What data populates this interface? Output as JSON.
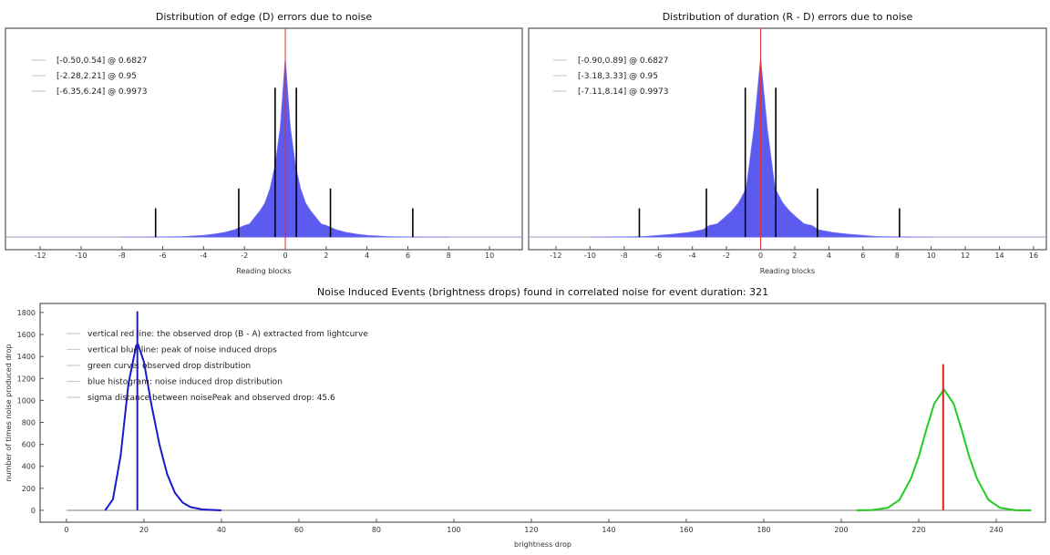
{
  "chart_data": [
    {
      "type": "area",
      "title": "Distribution of edge (D) errors due to noise",
      "xlabel": "Reading blocks",
      "ylabel": "",
      "xlim": [
        -13.7,
        11.6
      ],
      "ylim": [
        -0.07,
        1.16
      ],
      "xticks": [
        -12,
        -10,
        -8,
        -6,
        -4,
        -2,
        0,
        2,
        4,
        6,
        8,
        10
      ],
      "grid": false,
      "legend_position": "top-left",
      "legend": [
        "[-0.50,0.54] @ 0.6827",
        "[-2.28,2.21] @ 0.95",
        "[-6.35,6.24] @ 0.9973"
      ],
      "histogram": {
        "x": [
          -8,
          -6,
          -5,
          -4,
          -3.5,
          -3,
          -2.5,
          -2,
          -1.75,
          -1.5,
          -1.25,
          -1,
          -0.75,
          -0.5,
          -0.25,
          0,
          0.25,
          0.5,
          0.75,
          1,
          1.25,
          1.5,
          1.75,
          2,
          2.5,
          3,
          3.5,
          4,
          5,
          6,
          8
        ],
        "y": [
          0,
          0.002,
          0.004,
          0.01,
          0.017,
          0.026,
          0.041,
          0.065,
          0.074,
          0.11,
          0.145,
          0.19,
          0.27,
          0.4,
          0.61,
          1.0,
          0.61,
          0.4,
          0.27,
          0.19,
          0.145,
          0.11,
          0.074,
          0.065,
          0.041,
          0.026,
          0.017,
          0.01,
          0.004,
          0.002,
          0
        ]
      },
      "center_line_x": 0,
      "interval_lines": [
        {
          "x": -0.5,
          "height": 0.83
        },
        {
          "x": 0.54,
          "height": 0.83
        },
        {
          "x": -2.28,
          "height": 0.27
        },
        {
          "x": 2.21,
          "height": 0.27
        },
        {
          "x": -6.35,
          "height": 0.16
        },
        {
          "x": 6.24,
          "height": 0.16
        }
      ],
      "colors": {
        "histogram": "#5b5bf0",
        "center_line": "#e03030",
        "interval_lines": "#000000"
      }
    },
    {
      "type": "area",
      "title": "Distribution of duration (R - D) errors due to noise",
      "xlabel": "Reading blocks",
      "ylabel": "",
      "xlim": [
        -13.6,
        16.75
      ],
      "ylim": [
        -0.07,
        1.16
      ],
      "xticks": [
        -12,
        -10,
        -8,
        -6,
        -4,
        -2,
        0,
        2,
        4,
        6,
        8,
        10,
        12,
        14,
        16
      ],
      "grid": false,
      "legend_position": "top-left",
      "legend": [
        "[-0.90,0.89] @ 0.6827",
        "[-3.18,3.33] @ 0.95",
        "[-7.11,8.14] @ 0.9973"
      ],
      "histogram": {
        "x": [
          -10,
          -8.5,
          -6.8,
          -6,
          -5.1,
          -4.25,
          -3.4,
          -3,
          -2.55,
          -2.1,
          -1.7,
          -1.3,
          -0.85,
          -0.4,
          0,
          0.4,
          0.85,
          1.3,
          1.7,
          2.1,
          2.55,
          3,
          3.4,
          4.25,
          5.1,
          6,
          6.8,
          8.5,
          10
        ],
        "y": [
          0,
          0.002,
          0.004,
          0.01,
          0.017,
          0.026,
          0.041,
          0.065,
          0.074,
          0.11,
          0.145,
          0.19,
          0.27,
          0.6,
          1.0,
          0.6,
          0.27,
          0.19,
          0.145,
          0.11,
          0.074,
          0.065,
          0.041,
          0.026,
          0.017,
          0.01,
          0.004,
          0.002,
          0
        ]
      },
      "center_line_x": 0,
      "interval_lines": [
        {
          "x": -0.9,
          "height": 0.83
        },
        {
          "x": 0.89,
          "height": 0.83
        },
        {
          "x": -3.18,
          "height": 0.27
        },
        {
          "x": 3.33,
          "height": 0.27
        },
        {
          "x": -7.11,
          "height": 0.16
        },
        {
          "x": 8.14,
          "height": 0.16
        }
      ],
      "colors": {
        "histogram": "#5b5bf0",
        "center_line": "#e03030",
        "interval_lines": "#000000"
      }
    },
    {
      "type": "line",
      "title": "Noise Induced Events (brightness drops) found in correlated noise for event duration: 321",
      "xlabel": "brightness drop",
      "ylabel": "number of times noise produced drop",
      "xlim": [
        -6.8,
        252.7
      ],
      "ylim": [
        -108,
        1882
      ],
      "xticks": [
        0,
        20,
        40,
        60,
        80,
        100,
        120,
        140,
        160,
        180,
        200,
        220,
        240
      ],
      "yticks": [
        0,
        200,
        400,
        600,
        800,
        1000,
        1200,
        1400,
        1600,
        1800
      ],
      "grid": false,
      "legend_position": "top-left",
      "legend": [
        "vertical red line: the observed drop (B - A) extracted from lightcurve",
        "vertical blue line: peak of noise induced drops",
        "green curve: observed drop distribution",
        "blue histogram: noise induced drop distribution",
        "sigma distance between noisePeak and observed drop: 45.6"
      ],
      "series": [
        {
          "key": "blue_histogram",
          "color": "#1a1acc",
          "x": [
            10,
            12,
            14,
            16,
            18,
            18.5,
            20,
            22,
            24,
            26,
            28,
            30,
            32,
            35,
            40
          ],
          "y": [
            0,
            100,
            500,
            1150,
            1500,
            1510,
            1350,
            950,
            600,
            330,
            160,
            70,
            30,
            8,
            0
          ]
        },
        {
          "key": "green_curve",
          "color": "#22cc22",
          "x": [
            204,
            208,
            212,
            215,
            218,
            220,
            222,
            224,
            226.5,
            229,
            231,
            233,
            235,
            238,
            241,
            245,
            249
          ],
          "y": [
            0,
            3,
            22,
            95,
            290,
            490,
            740,
            970,
            1100,
            970,
            740,
            490,
            290,
            95,
            22,
            1,
            0
          ]
        }
      ],
      "baseline": {
        "x": [
          0,
          249
        ],
        "y": [
          0,
          0
        ],
        "color": "#999999"
      },
      "vertical_lines": [
        {
          "key": "observed_drop",
          "x": 226.3,
          "y_top": 1330,
          "color": "#e02020"
        },
        {
          "key": "noise_peak",
          "x": 18.3,
          "y_top": 1810,
          "color": "#2020aa"
        }
      ]
    }
  ]
}
